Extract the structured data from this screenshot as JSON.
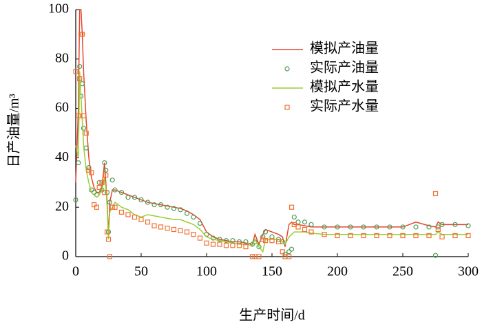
{
  "chart_data": {
    "type": "line",
    "x_label": "生产时间/d",
    "y_label": "日产油量/m³",
    "xlim": [
      0,
      300
    ],
    "xticks": [
      0,
      50,
      100,
      150,
      200,
      250,
      300
    ],
    "ylim": [
      0,
      100
    ],
    "yticks": [
      0,
      20,
      40,
      60,
      80,
      100
    ],
    "grid": false,
    "legend": "upper right",
    "x": [
      0,
      2,
      3,
      4,
      5,
      6,
      8,
      10,
      12,
      14,
      16,
      18,
      20,
      22,
      23,
      24,
      25,
      26,
      28,
      30,
      35,
      40,
      45,
      50,
      55,
      60,
      65,
      70,
      75,
      80,
      85,
      90,
      95,
      100,
      105,
      110,
      115,
      120,
      125,
      130,
      135,
      137,
      140,
      143,
      145,
      150,
      155,
      158,
      160,
      163,
      165,
      167,
      170,
      175,
      180,
      190,
      200,
      210,
      220,
      230,
      240,
      250,
      260,
      270,
      275,
      277,
      280,
      290,
      300
    ],
    "series": [
      {
        "name": "模拟产油量",
        "color": "#e8452c",
        "style": "line",
        "values": [
          30,
          60,
          100,
          100,
          90,
          75,
          55,
          40,
          32,
          28,
          26,
          26,
          28,
          38,
          30,
          22,
          8,
          22,
          27,
          27,
          26,
          25,
          24,
          23,
          22,
          21.5,
          21,
          20.5,
          20,
          19.5,
          18.5,
          17,
          15,
          10,
          8,
          7,
          6.5,
          6,
          6,
          5.5,
          5,
          9,
          5,
          9,
          11,
          10,
          9,
          8,
          4,
          13,
          14,
          13,
          13,
          12.5,
          12,
          12,
          12,
          12,
          12,
          12,
          12,
          12,
          14,
          12.5,
          12,
          14,
          13,
          13,
          13
        ]
      },
      {
        "name": "实际产油量",
        "color": "#4f9a56",
        "style": "circle",
        "values": [
          23,
          38,
          77,
          65,
          70,
          52,
          44,
          36,
          27,
          26,
          25,
          30,
          27,
          38,
          35,
          26,
          10,
          22,
          31,
          27,
          26,
          24,
          24,
          23,
          22,
          21,
          21,
          20,
          19.5,
          19,
          17.5,
          16,
          13.5,
          9,
          7.5,
          7,
          6.5,
          6.5,
          6,
          6,
          5,
          6,
          4,
          8,
          10,
          8,
          7,
          6,
          1,
          2,
          3,
          16,
          14,
          14,
          13,
          12,
          12,
          12,
          12,
          12,
          12,
          12,
          12,
          12,
          0.5,
          12,
          13,
          13,
          12.5
        ]
      },
      {
        "name": "模拟产水量",
        "color": "#9acd32",
        "style": "line",
        "values": [
          45,
          40,
          75,
          65,
          55,
          45,
          35,
          30,
          26,
          25,
          24,
          25,
          27,
          32,
          28,
          20,
          7,
          18,
          20,
          22,
          20,
          19,
          17,
          16,
          17,
          16.5,
          16,
          15.5,
          15,
          15,
          14,
          13,
          11,
          8,
          7,
          6.5,
          6,
          5.5,
          5,
          5,
          4.5,
          7,
          4,
          2,
          7,
          7,
          7,
          6,
          5,
          8,
          9,
          10,
          10,
          10,
          9.5,
          9,
          9,
          9,
          9,
          9,
          9,
          9,
          9,
          9,
          9,
          10,
          9,
          9,
          9
        ]
      },
      {
        "name": "实际产水量",
        "color": "#f07030",
        "style": "square",
        "values": [
          75,
          57,
          72,
          90,
          90,
          57,
          50,
          35,
          34,
          21,
          20,
          28,
          30,
          26,
          33,
          10,
          7,
          0,
          20,
          20,
          18,
          17,
          16,
          15,
          14,
          12.5,
          12,
          11.5,
          11,
          10.5,
          10,
          9,
          7.5,
          5.5,
          5,
          5,
          4.5,
          4.5,
          4.5,
          4,
          0,
          0,
          0,
          7,
          6.5,
          6.5,
          6,
          2,
          0,
          0,
          20,
          13,
          12,
          11,
          10,
          9,
          8.5,
          8.5,
          8.5,
          8.5,
          8.5,
          8.5,
          8.5,
          8.5,
          25.5,
          11,
          8,
          8.5,
          8.5
        ]
      }
    ]
  }
}
